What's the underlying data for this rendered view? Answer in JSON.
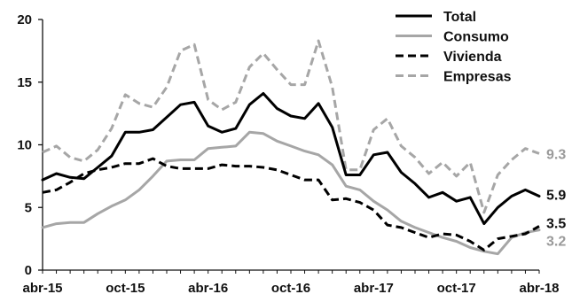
{
  "chart_data": {
    "type": "line",
    "title": "",
    "xlabel": "",
    "ylabel": "",
    "ylim": [
      0,
      20
    ],
    "yticks": [
      0,
      5,
      10,
      15,
      20
    ],
    "grid": false,
    "legend_position": "top-right",
    "x_tick_labels": [
      "abr-15",
      "oct-15",
      "abr-16",
      "oct-16",
      "abr-17",
      "oct-17",
      "abr-18"
    ],
    "x": [
      "abr-15",
      "may-15",
      "jun-15",
      "jul-15",
      "ago-15",
      "sep-15",
      "oct-15",
      "nov-15",
      "dic-15",
      "ene-16",
      "feb-16",
      "mar-16",
      "abr-16",
      "may-16",
      "jun-16",
      "jul-16",
      "ago-16",
      "sep-16",
      "oct-16",
      "nov-16",
      "dic-16",
      "ene-17",
      "feb-17",
      "mar-17",
      "abr-17",
      "may-17",
      "jun-17",
      "jul-17",
      "ago-17",
      "sep-17",
      "oct-17",
      "nov-17",
      "dic-17",
      "ene-18",
      "feb-18",
      "mar-18",
      "abr-18"
    ],
    "series": [
      {
        "name": "Total",
        "color": "#000000",
        "dash": "solid",
        "end_label": "5.9",
        "values": [
          7.2,
          7.7,
          7.4,
          7.3,
          8.2,
          9.1,
          11.0,
          11.0,
          11.2,
          12.2,
          13.2,
          13.4,
          11.5,
          11.0,
          11.3,
          13.2,
          14.1,
          12.9,
          12.3,
          12.1,
          13.3,
          11.4,
          7.6,
          7.6,
          9.2,
          9.4,
          7.8,
          6.9,
          5.8,
          6.2,
          5.5,
          5.8,
          3.7,
          5.0,
          5.9,
          6.4,
          5.9
        ]
      },
      {
        "name": "Consumo",
        "color": "#a6a6a6",
        "dash": "solid",
        "end_label": "3.2",
        "values": [
          3.4,
          3.7,
          3.8,
          3.8,
          4.5,
          5.1,
          5.6,
          6.4,
          7.5,
          8.7,
          8.8,
          8.8,
          9.7,
          9.8,
          9.9,
          11.0,
          10.9,
          10.3,
          9.9,
          9.5,
          9.2,
          8.4,
          6.7,
          6.4,
          5.5,
          4.8,
          3.9,
          3.4,
          3.0,
          2.6,
          2.3,
          1.8,
          1.5,
          1.3,
          2.6,
          3.0,
          3.2
        ]
      },
      {
        "name": "Vivienda",
        "color": "#000000",
        "dash": "dashed",
        "end_label": "3.5",
        "values": [
          6.2,
          6.4,
          7.0,
          7.7,
          8.0,
          8.2,
          8.5,
          8.5,
          8.9,
          8.3,
          8.1,
          8.1,
          8.1,
          8.4,
          8.3,
          8.3,
          8.2,
          8.0,
          7.6,
          7.2,
          7.2,
          5.6,
          5.7,
          5.4,
          4.8,
          3.6,
          3.4,
          3.0,
          2.6,
          2.9,
          2.8,
          2.3,
          1.6,
          2.5,
          2.7,
          2.9,
          3.5
        ]
      },
      {
        "name": "Empresas",
        "color": "#a6a6a6",
        "dash": "dashed",
        "end_label": "9.3",
        "values": [
          9.4,
          9.9,
          9.0,
          8.7,
          9.6,
          11.3,
          14.0,
          13.3,
          13.0,
          14.6,
          17.5,
          18.0,
          13.6,
          12.8,
          13.4,
          16.2,
          17.3,
          16.0,
          14.8,
          14.8,
          18.3,
          14.6,
          8.0,
          8.0,
          11.2,
          12.1,
          9.9,
          9.0,
          7.7,
          8.6,
          7.5,
          8.6,
          4.6,
          7.6,
          8.8,
          9.7,
          9.3
        ]
      }
    ]
  }
}
